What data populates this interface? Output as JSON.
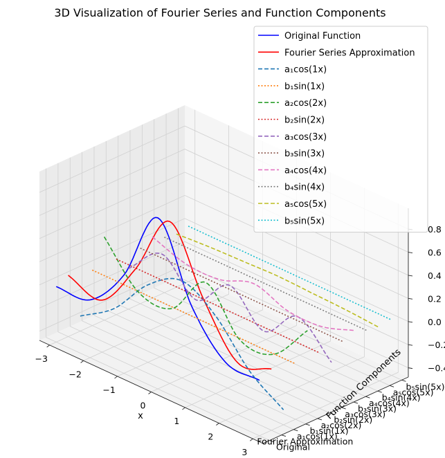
{
  "chart_data": {
    "type": "line",
    "projection": "3d",
    "title": "3D Visualization of Fourier Series and Function Components",
    "xlabel": "x",
    "ylabel": "Function Components",
    "zlabel": "",
    "xlim": [
      -3.3,
      3.3
    ],
    "zlim": [
      -0.48,
      0.98
    ],
    "x_ticks": [
      "−3",
      "−2",
      "−1",
      "0",
      "1",
      "2",
      "3"
    ],
    "z_ticks": [
      "−0.4",
      "−0.2",
      "0.0",
      "0.2",
      "0.4",
      "0.6",
      "0.8"
    ],
    "z_tick_values": [
      -0.4,
      -0.2,
      0.0,
      0.2,
      0.4,
      0.6,
      0.8
    ],
    "y_ticks": [
      "Original",
      "Fourier Approximation",
      "a₁cos(1x)",
      "b₁sin(1x)",
      "a₂cos(2x)",
      "b₂sin(2x)",
      "a₃cos(3x)",
      "b₃sin(3x)",
      "a₄cos(4x)",
      "b₄sin(4x)",
      "a₅cos(5x)",
      "b₅sin(5x)"
    ],
    "grid": true,
    "legend_position": "top-right",
    "x": [
      -3.0,
      -2.0,
      -1.0,
      0.0,
      1.0,
      2.0,
      3.0
    ],
    "series": [
      {
        "name": "Original Function",
        "y_index": 0,
        "color": "#0000ff",
        "style": "solid",
        "values": [
          0.0,
          0.02,
          0.37,
          1.0,
          0.37,
          0.02,
          0.0
        ]
      },
      {
        "name": "Fourier Series Approximation",
        "y_index": 1,
        "color": "#ff0000",
        "style": "solid",
        "values": [
          0.05,
          -0.03,
          0.38,
          0.92,
          0.38,
          -0.03,
          0.05
        ]
      },
      {
        "name": "a₁cos(1x)",
        "y_index": 2,
        "color": "#1f77b4",
        "style": "dashed",
        "values": [
          -0.35,
          -0.15,
          0.19,
          0.36,
          0.19,
          -0.15,
          -0.35
        ]
      },
      {
        "name": "b₁sin(1x)",
        "y_index": 3,
        "color": "#ff7f0e",
        "style": "dotted",
        "values": [
          0.0,
          0.0,
          0.0,
          0.0,
          0.0,
          0.0,
          0.0
        ]
      },
      {
        "name": "a₂cos(2x)",
        "y_index": 4,
        "color": "#2ca02c",
        "style": "dashed",
        "values": [
          0.24,
          -0.1,
          -0.11,
          0.25,
          -0.11,
          -0.1,
          0.24
        ]
      },
      {
        "name": "b₂sin(2x)",
        "y_index": 5,
        "color": "#d62728",
        "style": "dotted",
        "values": [
          0.0,
          0.0,
          0.0,
          0.0,
          0.0,
          0.0,
          0.0
        ]
      },
      {
        "name": "a₃cos(3x)",
        "y_index": 6,
        "color": "#9467bd",
        "style": "dashed",
        "values": [
          -0.13,
          0.13,
          -0.13,
          0.13,
          -0.13,
          0.13,
          -0.13
        ]
      },
      {
        "name": "b₃sin(3x)",
        "y_index": 7,
        "color": "#8c564b",
        "style": "dotted",
        "values": [
          0.0,
          0.0,
          0.0,
          0.0,
          0.0,
          0.0,
          0.0
        ]
      },
      {
        "name": "a₄cos(4x)",
        "y_index": 8,
        "color": "#e377c2",
        "style": "dashed",
        "values": [
          0.05,
          -0.05,
          -0.05,
          0.05,
          -0.05,
          -0.05,
          0.05
        ]
      },
      {
        "name": "b₄sin(4x)",
        "y_index": 9,
        "color": "#7f7f7f",
        "style": "dotted",
        "values": [
          0.0,
          0.0,
          0.0,
          0.0,
          0.0,
          0.0,
          0.0
        ]
      },
      {
        "name": "a₅cos(5x)",
        "y_index": 10,
        "color": "#bcbd22",
        "style": "dashed",
        "values": [
          -0.02,
          0.0,
          0.01,
          0.02,
          0.01,
          0.0,
          -0.02
        ]
      },
      {
        "name": "b₅sin(5x)",
        "y_index": 11,
        "color": "#17becf",
        "style": "dotted",
        "values": [
          0.0,
          0.0,
          0.0,
          0.0,
          0.0,
          0.0,
          0.0
        ]
      }
    ]
  }
}
